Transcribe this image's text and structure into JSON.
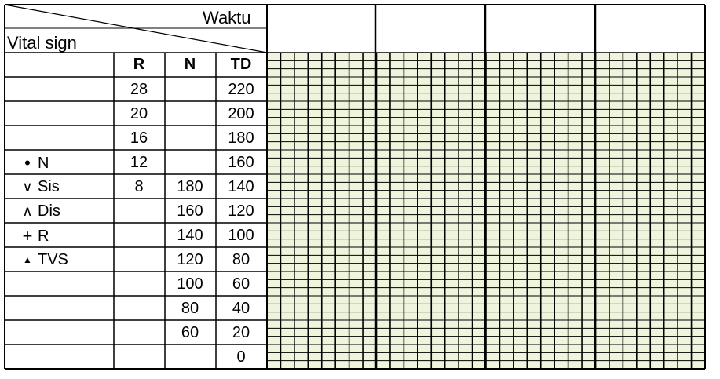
{
  "header": {
    "time_label": "Waktu",
    "vital_label": "Vital sign"
  },
  "columns": {
    "r": "R",
    "n": "N",
    "td": "TD"
  },
  "rows": [
    {
      "r": "28",
      "n": "",
      "td": "220",
      "legend": "",
      "symbol": ""
    },
    {
      "r": "20",
      "n": "",
      "td": "200",
      "legend": "",
      "symbol": ""
    },
    {
      "r": "16",
      "n": "",
      "td": "180",
      "legend": "",
      "symbol": ""
    },
    {
      "r": "12",
      "n": "",
      "td": "160",
      "legend": "N",
      "symbol": "•"
    },
    {
      "r": "8",
      "n": "180",
      "td": "140",
      "legend": "Sis",
      "symbol": "∨"
    },
    {
      "r": "",
      "n": "160",
      "td": "120",
      "legend": "Dis",
      "symbol": "∧"
    },
    {
      "r": "",
      "n": "140",
      "td": "100",
      "legend": "R",
      "symbol": "+"
    },
    {
      "r": "",
      "n": "120",
      "td": "80",
      "legend": "TVS",
      "symbol": "▲"
    },
    {
      "r": "",
      "n": "100",
      "td": "60",
      "legend": "",
      "symbol": ""
    },
    {
      "r": "",
      "n": "80",
      "td": "40",
      "legend": "",
      "symbol": ""
    },
    {
      "r": "",
      "n": "60",
      "td": "20",
      "legend": "",
      "symbol": ""
    },
    {
      "r": "",
      "n": "",
      "td": "0",
      "legend": "",
      "symbol": ""
    }
  ],
  "time_columns": [
    "",
    "",
    "",
    "",
    ""
  ],
  "colors": {
    "grid_fill": "#eef5dc",
    "grid_line_thin": "#000000",
    "line": "#000000"
  }
}
